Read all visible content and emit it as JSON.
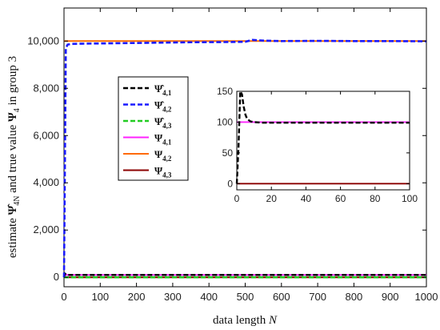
{
  "chart_data": [
    {
      "type": "line",
      "title": "",
      "xlabel_text": "data length ",
      "xlabel_var": "N",
      "ylabel_text": "estimate ",
      "ylabel_sym": "Ψ̂",
      "ylabel_sub": "4N",
      "ylabel_text2": " and true value ",
      "ylabel_sym2": "Ψ",
      "ylabel_sub2": "4",
      "ylabel_text3": " in group 3",
      "xlim": [
        0,
        1000
      ],
      "ylim": [
        -400,
        11400
      ],
      "xticks": [
        0,
        100,
        200,
        300,
        400,
        500,
        600,
        700,
        800,
        900,
        1000
      ],
      "yticks": [
        0,
        2000,
        4000,
        6000,
        8000,
        10000
      ],
      "ytick_labels": [
        "0",
        "2,000",
        "4,000",
        "6,000",
        "8,000",
        "10,000"
      ],
      "grid": false,
      "legend_position": "center-left",
      "series": [
        {
          "name": "Ψ̂",
          "sub": "4,1",
          "hat": true,
          "color": "#000000",
          "style": "dashed",
          "x": [
            0,
            3,
            6,
            10,
            20,
            50,
            100,
            200,
            300,
            400,
            500,
            600,
            700,
            800,
            900,
            1000
          ],
          "y": [
            0,
            150,
            115,
            100,
            100,
            100,
            100,
            100,
            100,
            100,
            100,
            100,
            100,
            100,
            100,
            100
          ]
        },
        {
          "name": "Ψ̂",
          "sub": "4,2",
          "hat": true,
          "color": "#1a1aff",
          "style": "dashed",
          "x": [
            0,
            5,
            10,
            20,
            50,
            100,
            150,
            200,
            250,
            300,
            350,
            400,
            450,
            500,
            520,
            550,
            600,
            700,
            800,
            900,
            1000
          ],
          "y": [
            0,
            9700,
            9850,
            9880,
            9890,
            9900,
            9910,
            9920,
            9930,
            9940,
            9950,
            9955,
            9960,
            9970,
            10050,
            10020,
            10000,
            10010,
            10000,
            10000,
            9990
          ]
        },
        {
          "name": "Ψ̂",
          "sub": "4,3",
          "hat": true,
          "color": "#22cc22",
          "style": "dashed",
          "x": [
            0,
            1000
          ],
          "y": [
            0,
            0
          ]
        },
        {
          "name": "Ψ",
          "sub": "4,1",
          "hat": false,
          "color": "#ff22ff",
          "style": "solid",
          "x": [
            0,
            1000
          ],
          "y": [
            100,
            100
          ]
        },
        {
          "name": "Ψ",
          "sub": "4,2",
          "hat": false,
          "color": "#ff6a00",
          "style": "solid",
          "x": [
            0,
            1000
          ],
          "y": [
            10000,
            10000
          ]
        },
        {
          "name": "Ψ",
          "sub": "4,3",
          "hat": false,
          "color": "#8b0000",
          "style": "solid",
          "x": [
            0,
            1000
          ],
          "y": [
            0,
            0
          ]
        }
      ]
    },
    {
      "type": "line",
      "role": "inset",
      "xlim": [
        0,
        100
      ],
      "ylim": [
        -10,
        150
      ],
      "xticks": [
        0,
        20,
        40,
        60,
        80,
        100
      ],
      "yticks": [
        0,
        50,
        100,
        150
      ],
      "series": [
        {
          "sub": "4,1",
          "color": "#000000",
          "style": "dashed",
          "x": [
            0,
            1,
            2,
            3,
            4,
            5,
            6,
            8,
            10,
            15,
            20,
            40,
            60,
            80,
            100
          ],
          "y": [
            0,
            60,
            150,
            145,
            125,
            112,
            105,
            101,
            100,
            99,
            99,
            99,
            99,
            99,
            99
          ]
        },
        {
          "sub": "4,3",
          "color": "#22cc22",
          "style": "dashed",
          "x": [
            0,
            100
          ],
          "y": [
            0,
            0
          ]
        },
        {
          "sub": "Ψ4,1",
          "color": "#ff22ff",
          "style": "solid",
          "x": [
            0,
            100
          ],
          "y": [
            100,
            100
          ]
        },
        {
          "sub": "Ψ4,3",
          "color": "#8b0000",
          "style": "solid",
          "x": [
            0,
            100
          ],
          "y": [
            0,
            0
          ]
        }
      ]
    }
  ]
}
